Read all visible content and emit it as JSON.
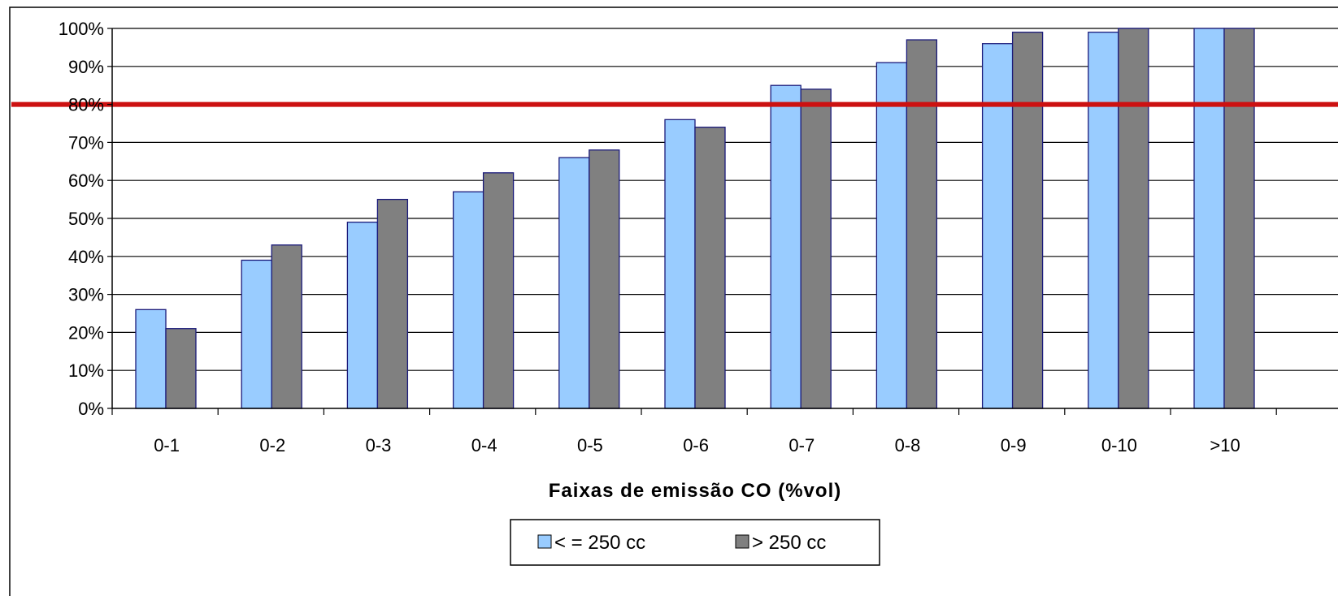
{
  "chart_data": {
    "type": "bar",
    "title": "",
    "xlabel": "Faixas de emissão CO (%vol)",
    "ylabel": "",
    "categories": [
      "0-1",
      "0-2",
      "0-3",
      "0-4",
      "0-5",
      "0-6",
      "0-7",
      "0-8",
      "0-9",
      "0-10",
      ">10"
    ],
    "ylim": [
      0,
      100
    ],
    "yticks": [
      "0%",
      "10%",
      "20%",
      "30%",
      "40%",
      "50%",
      "60%",
      "70%",
      "80%",
      "90%",
      "100%"
    ],
    "grid": true,
    "legend_position": "bottom",
    "reference_line": {
      "value": 80,
      "color": "#cc1111"
    },
    "series": [
      {
        "name": "< = 250 cc",
        "color": "#99ccff",
        "values": [
          26,
          39,
          49,
          57,
          66,
          76,
          85,
          91,
          96,
          99,
          100
        ]
      },
      {
        "name": "> 250 cc",
        "color": "#808080",
        "values": [
          21,
          43,
          55,
          62,
          68,
          74,
          84,
          97,
          99,
          100,
          100
        ]
      }
    ]
  }
}
